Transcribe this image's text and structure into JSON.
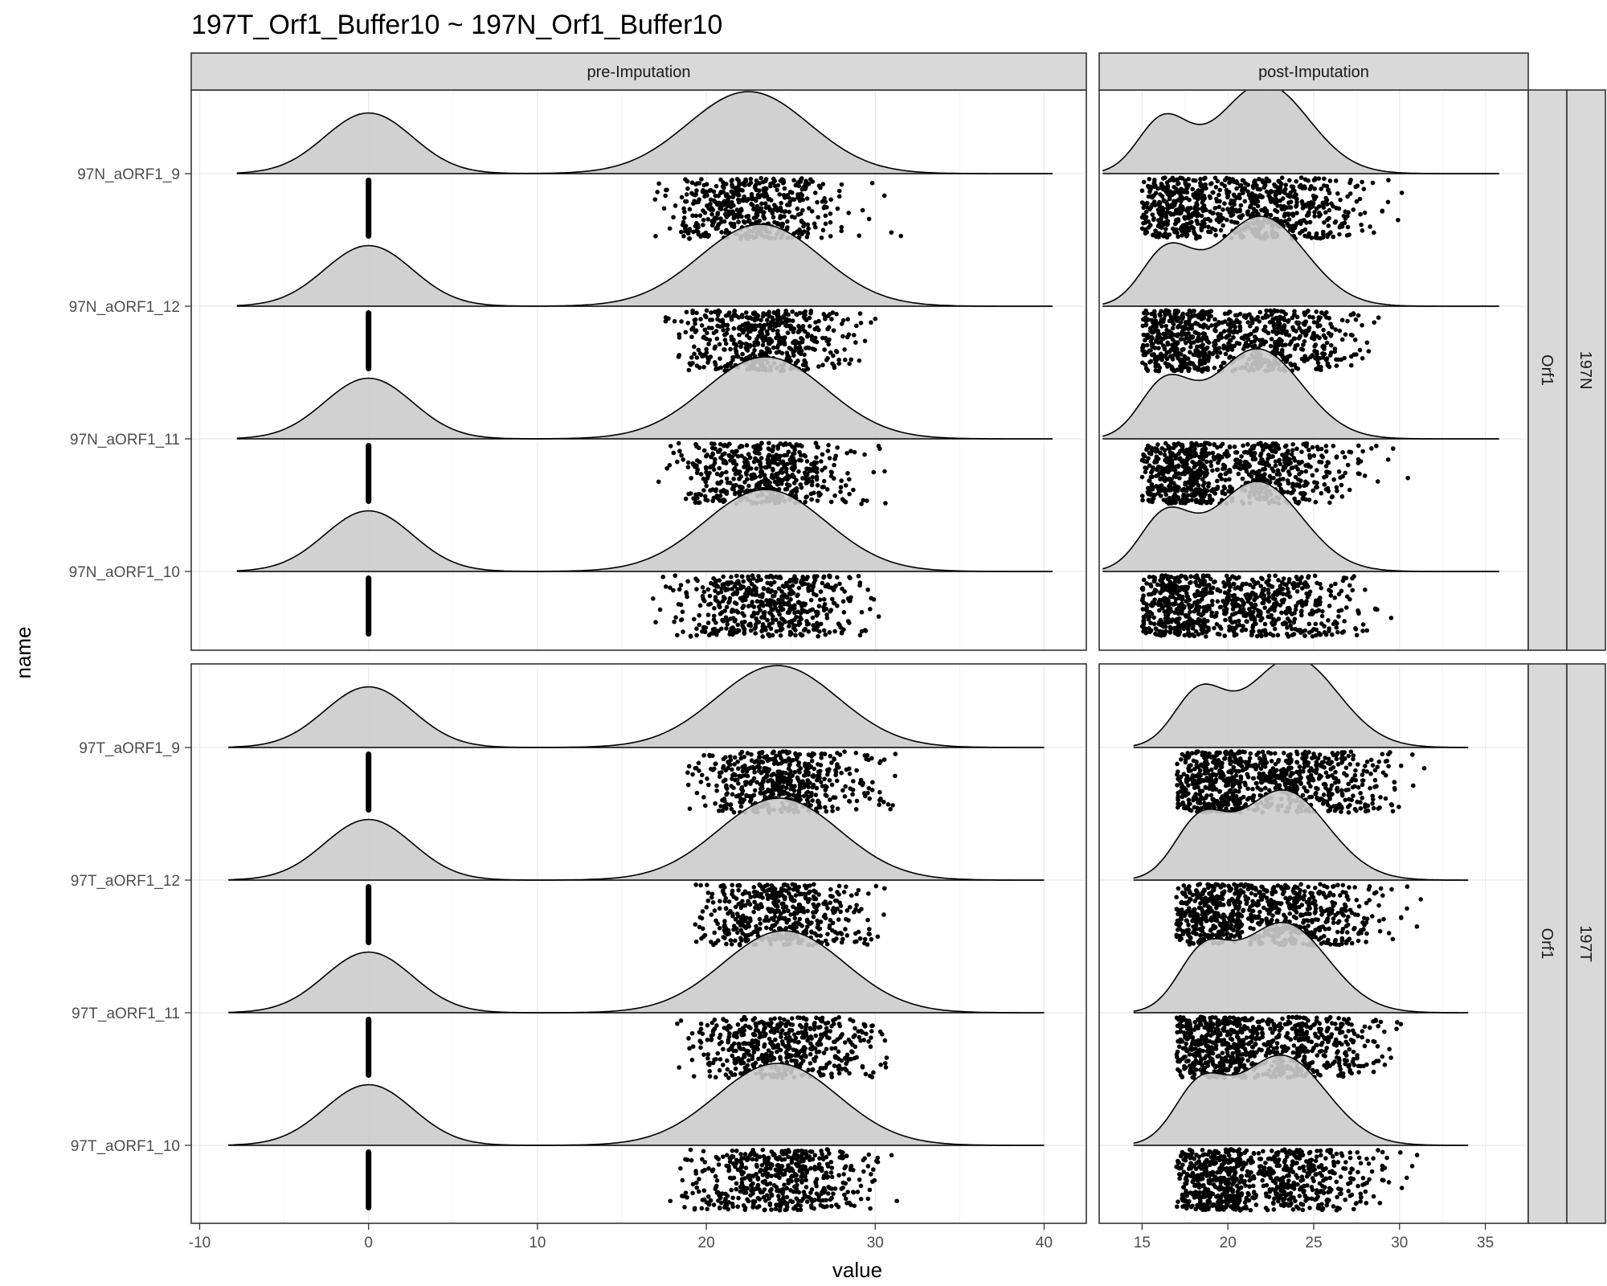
{
  "chart_data": {
    "type": "ridgeline+jitter",
    "title": "197T_Orf1_Buffer10 ~ 197N_Orf1_Buffer10",
    "xlabel": "value",
    "ylabel": "name",
    "columns": [
      {
        "label": "pre-Imputation",
        "xlim": [
          -10.5,
          42.5
        ],
        "ticks": [
          -10,
          0,
          10,
          20,
          30,
          40
        ]
      },
      {
        "label": "post-Imputation",
        "xlim": [
          12.5,
          37.5
        ],
        "ticks": [
          15,
          20,
          25,
          30,
          35
        ]
      }
    ],
    "rows": [
      {
        "strip_inner": "Orf1",
        "strip_outer": "197N",
        "names": [
          "97N_aORF1_9",
          "97N_aORF1_12",
          "97N_aORF1_11",
          "97N_aORF1_10"
        ],
        "pre": [
          {
            "range": [
              -7.8,
              40.5
            ],
            "peak0": 0.0,
            "peak1": 22.5,
            "imputed_peak_height": 0.85,
            "measured_range": [
              16.9,
              33.0
            ]
          },
          {
            "range": [
              -7.8,
              40.5
            ],
            "peak0": 0.0,
            "peak1": 23.2,
            "imputed_peak_height": 0.95,
            "measured_range": [
              17.5,
              31.3
            ]
          },
          {
            "range": [
              -7.8,
              40.5
            ],
            "peak0": 0.0,
            "peak1": 23.5,
            "imputed_peak_height": 1.0,
            "measured_range": [
              17.0,
              31.0
            ]
          },
          {
            "range": [
              -7.8,
              40.5
            ],
            "peak0": 0.0,
            "peak1": 23.5,
            "imputed_peak_height": 1.0,
            "measured_range": [
              16.8,
              31.3
            ]
          }
        ],
        "post": [
          {
            "range": [
              12.7,
              35.8
            ],
            "peak_low": 16.2,
            "peak_high": 22.1,
            "measured_range": [
              15.0,
              32.8
            ]
          },
          {
            "range": [
              12.7,
              35.8
            ],
            "peak_low": 16.4,
            "peak_high": 21.9,
            "measured_range": [
              15.0,
              31.7
            ]
          },
          {
            "range": [
              12.7,
              35.8
            ],
            "peak_low": 16.3,
            "peak_high": 21.7,
            "measured_range": [
              15.0,
              32.8
            ]
          },
          {
            "range": [
              12.7,
              35.8
            ],
            "peak_low": 16.3,
            "peak_high": 21.7,
            "measured_range": [
              15.0,
              33.6
            ]
          }
        ]
      },
      {
        "strip_inner": "Orf1",
        "strip_outer": "197T",
        "names": [
          "97T_aORF1_9",
          "97T_aORF1_12",
          "97T_aORF1_11",
          "97T_aORF1_10"
        ],
        "pre": [
          {
            "range": [
              -8.3,
              40.0
            ],
            "peak0": 0.0,
            "peak1": 24.2,
            "imputed_peak_height": 0.9,
            "measured_range": [
              18.8,
              31.2
            ]
          },
          {
            "range": [
              -8.3,
              40.0
            ],
            "peak0": 0.0,
            "peak1": 24.3,
            "imputed_peak_height": 1.3,
            "measured_range": [
              19.3,
              30.8
            ]
          },
          {
            "range": [
              -8.3,
              40.0
            ],
            "peak0": 0.0,
            "peak1": 24.6,
            "imputed_peak_height": 1.45,
            "measured_range": [
              17.7,
              30.7
            ]
          },
          {
            "range": [
              -8.3,
              40.0
            ],
            "peak0": 0.0,
            "peak1": 24.2,
            "imputed_peak_height": 1.05,
            "measured_range": [
              17.4,
              31.3
            ]
          }
        ],
        "post": [
          {
            "range": [
              14.5,
              34.0
            ],
            "peak_low": 18.3,
            "peak_high": 23.8,
            "measured_range": [
              17.0,
              31.6
            ]
          },
          {
            "range": [
              14.5,
              34.0
            ],
            "peak_low": 18.3,
            "peak_high": 23.2,
            "measured_range": [
              17.0,
              31.4
            ]
          },
          {
            "range": [
              14.5,
              34.0
            ],
            "peak_low": 18.5,
            "peak_high": 23.2,
            "measured_range": [
              17.0,
              31.2
            ]
          },
          {
            "range": [
              14.5,
              34.0
            ],
            "peak_low": 18.3,
            "peak_high": 23.1,
            "measured_range": [
              17.0,
              31.4
            ]
          }
        ]
      }
    ],
    "grid": true,
    "theme": "bw",
    "colors": {
      "density_fill": "#cccccc",
      "density_line": "#000000",
      "points": "#000000",
      "strip_fill": "#d9d9d9",
      "grid": "#ebebeb",
      "panel_border": "#333333"
    }
  }
}
